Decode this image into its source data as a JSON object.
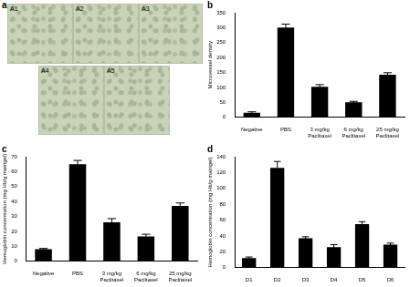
{
  "image_panel": {
    "label": "a",
    "images": [
      "A1",
      "A2",
      "A3",
      "A4",
      "A5"
    ]
  },
  "chart_data": [
    {
      "type": "bar",
      "title": "b",
      "y_label": "Microvessel density",
      "categories": [
        "Negative",
        "PBS",
        [
          "3 mg/kg",
          "Paclitaxel"
        ],
        [
          "6 mg/kg",
          "Paclitaxel"
        ],
        [
          "25 mg/kg",
          "Paclitaxel"
        ]
      ],
      "values": [
        15,
        300,
        102,
        50,
        142
      ],
      "errors": [
        3,
        12,
        7,
        3,
        7
      ],
      "color": "#000000",
      "ylim": [
        0,
        350
      ],
      "yticks": [
        0,
        50,
        100,
        150,
        200,
        250,
        300,
        350
      ],
      "grid": false
    },
    {
      "type": "bar",
      "title": "c",
      "y_label": "Hemoglobin concentration (mg Hb/g matrigel)",
      "categories": [
        "Negative",
        "PBS",
        [
          "3 mg/kg",
          "Paclitaxel"
        ],
        [
          "6 mg/kg",
          "Paclitaxel"
        ],
        [
          "25 mg/kg",
          "Paclitaxel"
        ]
      ],
      "values": [
        8,
        65,
        26,
        16.5,
        37
      ],
      "errors": [
        0.5,
        2.5,
        2.5,
        1.5,
        2
      ],
      "color": "#000000",
      "ylim": [
        0,
        70
      ],
      "yticks": [
        0,
        10,
        20,
        30,
        40,
        50,
        60,
        70
      ],
      "grid": false
    },
    {
      "type": "bar",
      "title": "d",
      "y_label": "Hemoglobin concentration (mg Hb/g matrigel)",
      "categories": [
        "D1",
        "D2",
        "D3",
        "D4",
        "D5",
        "D6"
      ],
      "values": [
        12,
        126,
        37,
        26,
        55,
        29
      ],
      "errors": [
        1.5,
        8,
        2,
        3,
        3,
        2
      ],
      "color": "#000000",
      "ylim": [
        0,
        140
      ],
      "yticks": [
        0,
        20,
        40,
        60,
        80,
        100,
        120,
        140
      ],
      "grid": false
    }
  ]
}
